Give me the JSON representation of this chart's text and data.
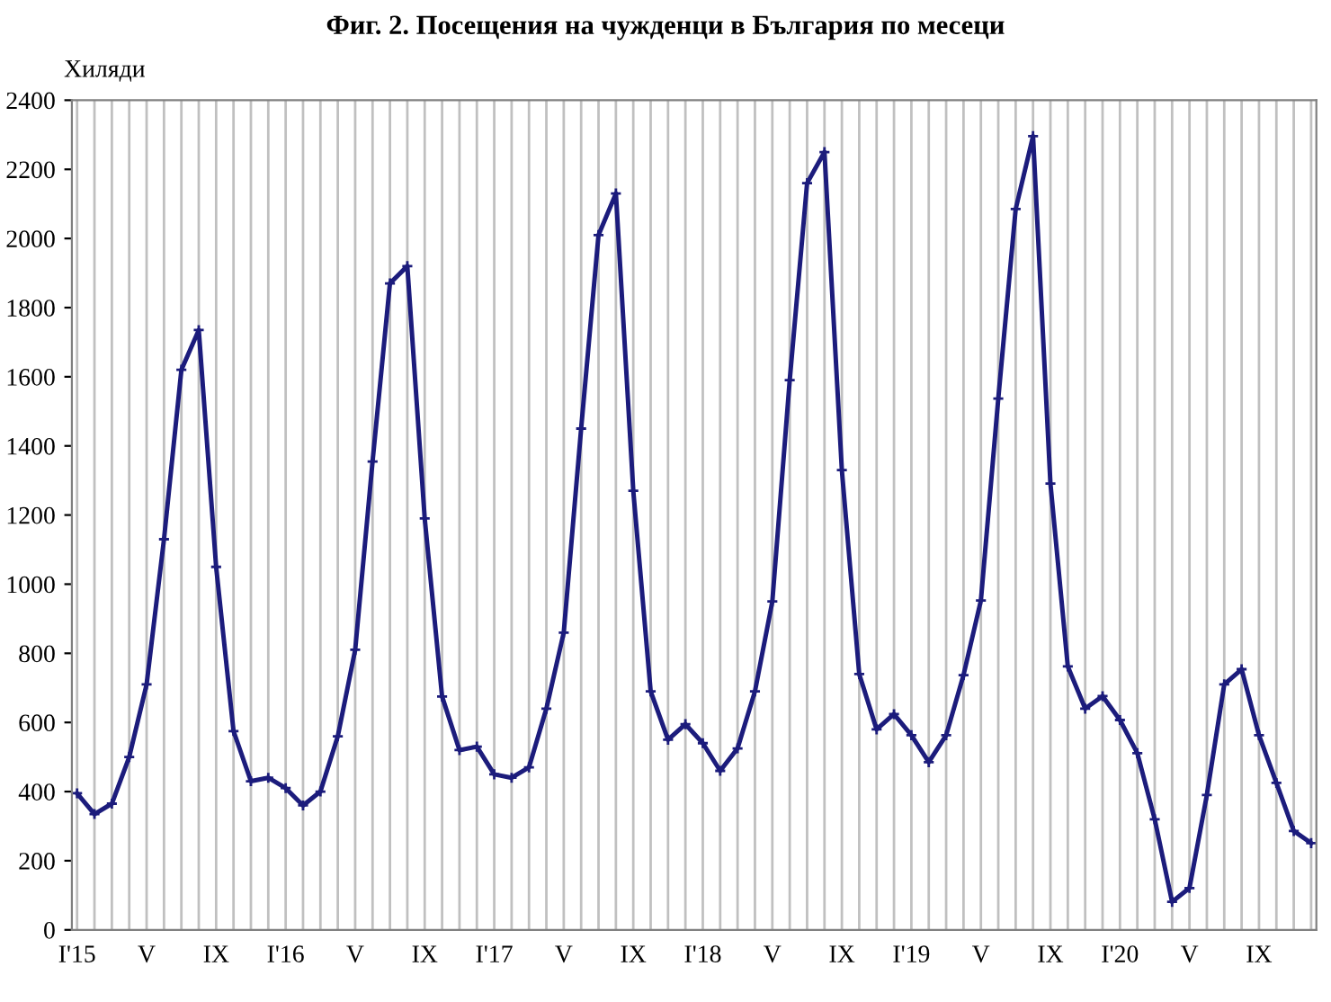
{
  "chart_data": {
    "type": "line",
    "title": "Фиг. 2. Посещения на чужденци в България по месеци",
    "ylabel": "Хиляди",
    "categories": [
      "I'15",
      null,
      null,
      null,
      "V",
      null,
      null,
      null,
      "IX",
      null,
      null,
      null,
      "I'16",
      null,
      null,
      null,
      "V",
      null,
      null,
      null,
      "IX",
      null,
      null,
      null,
      "I'17",
      null,
      null,
      null,
      "V",
      null,
      null,
      null,
      "IX",
      null,
      null,
      null,
      "I'18",
      null,
      null,
      null,
      "V",
      null,
      null,
      null,
      "IX",
      null,
      null,
      null,
      "I'19",
      null,
      null,
      null,
      "V",
      null,
      null,
      null,
      "IX",
      null,
      null,
      null,
      "I'20",
      null,
      null,
      null,
      "V",
      null,
      null,
      null,
      "IX",
      null,
      null,
      null
    ],
    "series": [
      {
        "color": "#1c1c7c",
        "values": [
          395,
          335,
          365,
          500,
          710,
          1130,
          1620,
          1735,
          1050,
          575,
          430,
          440,
          410,
          360,
          400,
          560,
          810,
          1355,
          1870,
          1920,
          1190,
          675,
          520,
          530,
          450,
          440,
          470,
          640,
          860,
          1450,
          2010,
          2130,
          1270,
          690,
          550,
          595,
          540,
          460,
          525,
          690,
          950,
          1590,
          2160,
          2250,
          1330,
          740,
          580,
          624,
          563,
          485,
          563,
          737,
          953,
          1537,
          2085,
          2296,
          1291,
          762,
          640,
          676,
          607,
          511,
          320,
          81,
          121,
          390,
          710,
          754,
          563,
          425,
          286,
          251
        ]
      }
    ],
    "ylim": [
      0,
      2400
    ],
    "yticks": [
      0,
      200,
      400,
      600,
      800,
      1000,
      1200,
      1400,
      1600,
      1800,
      2000,
      2200,
      2400
    ],
    "grid": "x",
    "legend": false,
    "marker": "cross",
    "line_style": "solid"
  }
}
